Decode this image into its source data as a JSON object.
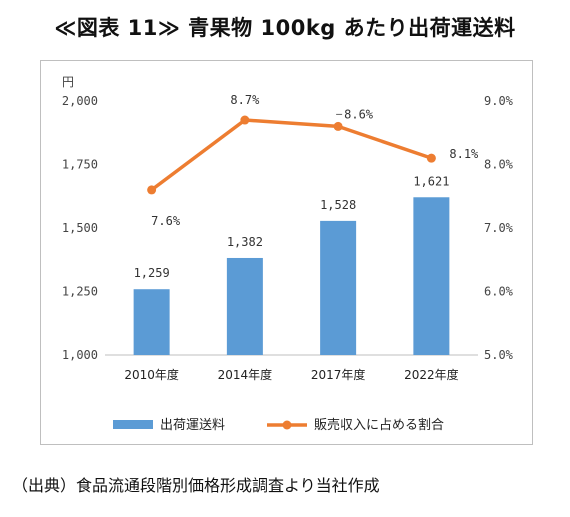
{
  "title": "≪図表 11≫ 青果物 100kg あたり出荷運送料",
  "source": "（出典）食品流通段階別価格形成調査より当社作成",
  "chart_data": {
    "type": "bar",
    "categories": [
      "2010年度",
      "2014年度",
      "2017年度",
      "2022年度"
    ],
    "y_unit": "円",
    "ylim": [
      1000,
      2000
    ],
    "yticks": [
      "1,000",
      "1,250",
      "1,500",
      "1,750",
      "2,000"
    ],
    "y2lim": [
      5.0,
      9.0
    ],
    "y2ticks": [
      "5.0%",
      "6.0%",
      "7.0%",
      "8.0%",
      "9.0%"
    ],
    "grid": false,
    "legend_position": "bottom",
    "series": [
      {
        "name": "出荷運送料",
        "type": "bar",
        "axis": "left",
        "color": "#5b9bd5",
        "values": [
          1259,
          1382,
          1528,
          1621
        ],
        "labels": [
          "1,259",
          "1,382",
          "1,528",
          "1,621"
        ]
      },
      {
        "name": "販売収入に占める割合",
        "type": "line",
        "axis": "right",
        "color": "#ed7d31",
        "values": [
          7.6,
          8.7,
          8.6,
          8.1
        ],
        "labels": [
          "7.6%",
          "8.7%",
          "8.6%",
          "8.1%"
        ]
      }
    ]
  }
}
